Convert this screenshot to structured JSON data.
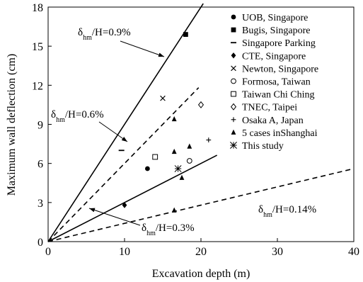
{
  "chart_data": {
    "type": "scatter",
    "xlabel": "Excavation depth  (m)",
    "ylabel": "Maximum wall deflection  (cm)",
    "xlim": [
      0,
      40
    ],
    "ylim": [
      0,
      18
    ],
    "xticks": [
      "0",
      "10",
      "20",
      "30",
      "40"
    ],
    "yticks": [
      "0",
      "3",
      "6",
      "9",
      "12",
      "15",
      "18"
    ],
    "grid": false,
    "legend_position": "top-right",
    "series": [
      {
        "name": "UOB, Singapore",
        "marker": "filled-circle",
        "points": [
          [
            13.0,
            5.6
          ]
        ]
      },
      {
        "name": "Bugis, Singapore",
        "marker": "filled-square",
        "points": [
          [
            18.0,
            15.9
          ]
        ]
      },
      {
        "name": "Singapore Parking",
        "marker": "dash",
        "points": [
          [
            9.6,
            7.0
          ]
        ]
      },
      {
        "name": "CTE, Singapore",
        "marker": "filled-diamond",
        "points": [
          [
            10.0,
            2.8
          ]
        ]
      },
      {
        "name": "Newton, Singapore",
        "marker": "x",
        "points": [
          [
            15.0,
            11.0
          ]
        ]
      },
      {
        "name": "Formosa, Taiwan",
        "marker": "open-circle",
        "points": [
          [
            18.5,
            6.2
          ]
        ]
      },
      {
        "name": "Taiwan Chi Ching",
        "marker": "open-square",
        "points": [
          [
            14.0,
            6.5
          ]
        ]
      },
      {
        "name": "TNEC, Taipei",
        "marker": "open-diamond",
        "points": [
          [
            20.0,
            10.5
          ]
        ]
      },
      {
        "name": "Osaka A, Japan",
        "marker": "plus",
        "points": [
          [
            21.0,
            7.8
          ]
        ]
      },
      {
        "name": "5 cases inShanghai",
        "marker": "filled-triangle",
        "points": [
          [
            16.5,
            9.4
          ],
          [
            16.5,
            6.9
          ],
          [
            18.5,
            7.3
          ],
          [
            17.5,
            4.9
          ],
          [
            16.5,
            2.4
          ]
        ]
      },
      {
        "name": "This study",
        "marker": "asterisk",
        "points": [
          [
            17.0,
            5.6
          ]
        ]
      }
    ],
    "reference_lines": [
      {
        "label_main": "δ",
        "label_sub": "hm",
        "label_rest": "/H=0.9%",
        "ratio": 0.009,
        "style": "solid"
      },
      {
        "label_main": "δ",
        "label_sub": "hm",
        "label_rest": "/H=0.6%",
        "ratio": 0.006,
        "style": "dashed"
      },
      {
        "label_main": "δ",
        "label_sub": "hm",
        "label_rest": "/H=0.3%",
        "ratio": 0.003,
        "style": "solid"
      },
      {
        "label_main": "δ",
        "label_sub": "hm",
        "label_rest": "/H=0.14%",
        "ratio": 0.0014,
        "style": "dashed"
      }
    ]
  }
}
